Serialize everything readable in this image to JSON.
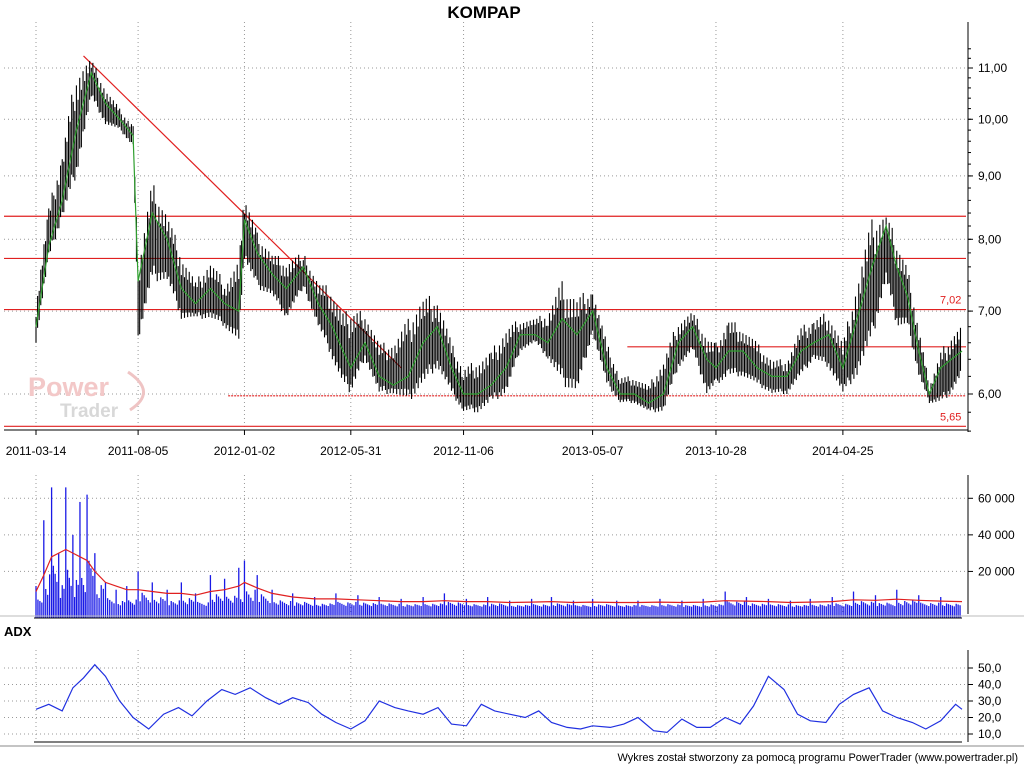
{
  "chart_data": [
    {
      "type": "line",
      "title": "KOMPAP",
      "y_scale": "log",
      "ylim": [
        5.5,
        11.6
      ],
      "yticks": [
        6,
        7,
        8,
        9,
        10,
        11
      ],
      "ytick_labels": [
        "6,00",
        "7,00",
        "8,00",
        "9,00",
        "10,00",
        "11,00"
      ],
      "x_tick_labels": [
        "2011-03-14",
        "2011-08-05",
        "2012-01-02",
        "2012-05-31",
        "2012-11-06",
        "2013-05-07",
        "2013-10-28",
        "2014-04-25"
      ],
      "grid": true,
      "series": [
        {
          "type": "hilo",
          "color": "#000000",
          "x": [
            "2011-03-14",
            "2011-04-01",
            "2011-04-20",
            "2011-05-10",
            "2011-05-31",
            "2011-06-20",
            "2011-07-10",
            "2011-07-29",
            "2011-08-05",
            "2011-08-25",
            "2011-09-15",
            "2011-10-05",
            "2011-10-25",
            "2011-11-15",
            "2011-12-05",
            "2011-12-25",
            "2012-01-02",
            "2012-01-20",
            "2012-02-10",
            "2012-03-01",
            "2012-03-25",
            "2012-04-15",
            "2012-05-05",
            "2012-05-20",
            "2012-05-31",
            "2012-06-20",
            "2012-07-10",
            "2012-07-30",
            "2012-08-20",
            "2012-09-10",
            "2012-09-30",
            "2012-10-20",
            "2012-11-06",
            "2012-11-26",
            "2012-12-15",
            "2013-01-05",
            "2013-01-25",
            "2013-02-15",
            "2013-03-05",
            "2013-03-25",
            "2013-04-15",
            "2013-05-07",
            "2013-05-27",
            "2013-06-15",
            "2013-07-05",
            "2013-07-25",
            "2013-08-15",
            "2013-09-05",
            "2013-09-25",
            "2013-10-15",
            "2013-10-28",
            "2013-11-15",
            "2013-12-05",
            "2013-12-25",
            "2014-01-15",
            "2014-02-05",
            "2014-02-25",
            "2014-03-15",
            "2014-04-05",
            "2014-04-25",
            "2014-05-15",
            "2014-06-05",
            "2014-06-25",
            "2014-07-10",
            "2014-07-25",
            "2014-08-10",
            "2014-08-25",
            "2014-09-10",
            "2014-09-25",
            "2014-10-10"
          ],
          "low": [
            6.6,
            7.7,
            8.3,
            9.0,
            10.4,
            9.9,
            9.8,
            9.5,
            6.6,
            7.4,
            7.4,
            6.9,
            6.9,
            6.9,
            6.8,
            6.6,
            7.7,
            7.3,
            7.2,
            6.9,
            7.3,
            6.8,
            6.4,
            6.1,
            6.0,
            6.4,
            6.0,
            6.0,
            5.9,
            6.1,
            6.3,
            6.0,
            5.8,
            5.8,
            5.9,
            6.0,
            6.5,
            6.6,
            6.4,
            6.1,
            6.0,
            6.7,
            6.1,
            5.9,
            5.9,
            5.8,
            5.8,
            6.3,
            6.5,
            6.0,
            6.1,
            6.2,
            6.2,
            6.1,
            6.0,
            6.0,
            6.2,
            6.4,
            6.3,
            6.0,
            6.2,
            6.6,
            7.4,
            6.8,
            6.8,
            6.2,
            5.9,
            5.9,
            6.0,
            6.2
          ],
          "high": [
            7.1,
            8.5,
            9.4,
            11.0,
            11.2,
            10.6,
            10.2,
            9.9,
            7.6,
            8.9,
            8.4,
            7.8,
            7.4,
            7.7,
            7.4,
            7.7,
            8.7,
            8.1,
            7.8,
            7.7,
            7.8,
            7.4,
            7.3,
            7.0,
            7.0,
            7.0,
            6.6,
            6.6,
            6.9,
            7.2,
            7.2,
            6.6,
            6.3,
            6.4,
            6.5,
            6.8,
            6.9,
            6.9,
            7.0,
            7.4,
            7.2,
            7.3,
            6.6,
            6.2,
            6.2,
            6.1,
            6.4,
            6.9,
            7.0,
            6.7,
            6.6,
            6.9,
            6.8,
            6.6,
            6.4,
            6.4,
            6.8,
            6.9,
            7.0,
            6.6,
            7.4,
            8.3,
            8.4,
            8.0,
            7.6,
            6.8,
            6.1,
            6.5,
            6.7,
            6.8
          ]
        },
        {
          "type": "line",
          "color": "#2e9e2e",
          "x": [
            "2011-03-14",
            "2011-04-01",
            "2011-04-20",
            "2011-05-10",
            "2011-05-31",
            "2011-06-20",
            "2011-07-10",
            "2011-07-29",
            "2011-08-05",
            "2011-08-25",
            "2011-09-15",
            "2011-10-05",
            "2011-10-25",
            "2011-11-15",
            "2011-12-05",
            "2011-12-25",
            "2012-01-02",
            "2012-01-20",
            "2012-02-10",
            "2012-03-01",
            "2012-03-25",
            "2012-04-15",
            "2012-05-05",
            "2012-05-20",
            "2012-05-31",
            "2012-06-20",
            "2012-07-10",
            "2012-07-30",
            "2012-08-20",
            "2012-09-10",
            "2012-09-30",
            "2012-10-20",
            "2012-11-06",
            "2012-11-26",
            "2012-12-15",
            "2013-01-05",
            "2013-01-25",
            "2013-02-15",
            "2013-03-05",
            "2013-03-25",
            "2013-04-15",
            "2013-05-07",
            "2013-05-27",
            "2013-06-15",
            "2013-07-05",
            "2013-07-25",
            "2013-08-15",
            "2013-09-05",
            "2013-09-25",
            "2013-10-15",
            "2013-10-28",
            "2013-11-15",
            "2013-12-05",
            "2013-12-25",
            "2014-01-15",
            "2014-02-05",
            "2014-02-25",
            "2014-03-15",
            "2014-04-05",
            "2014-04-25",
            "2014-05-15",
            "2014-06-05",
            "2014-06-25",
            "2014-07-10",
            "2014-07-25",
            "2014-08-10",
            "2014-08-25",
            "2014-09-10",
            "2014-09-25",
            "2014-10-10"
          ],
          "y": [
            6.8,
            7.9,
            8.6,
            9.8,
            10.9,
            10.3,
            10.0,
            9.7,
            7.4,
            8.4,
            8.0,
            7.3,
            7.1,
            7.3,
            7.1,
            7.0,
            8.3,
            7.8,
            7.5,
            7.3,
            7.6,
            7.1,
            6.8,
            6.5,
            6.3,
            6.6,
            6.2,
            6.1,
            6.2,
            6.6,
            6.8,
            6.3,
            6.0,
            6.0,
            6.1,
            6.3,
            6.7,
            6.7,
            6.6,
            6.9,
            6.7,
            7.0,
            6.3,
            6.0,
            6.0,
            5.9,
            6.0,
            6.6,
            6.8,
            6.4,
            6.3,
            6.5,
            6.5,
            6.3,
            6.2,
            6.2,
            6.5,
            6.6,
            6.7,
            6.3,
            6.9,
            7.6,
            8.2,
            7.6,
            7.2,
            6.5,
            6.0,
            6.3,
            6.4,
            6.5
          ]
        }
      ],
      "lines": [
        {
          "kind": "trend",
          "color": "#e02020",
          "from": {
            "x": "2011-05-20",
            "y": 11.25
          },
          "to": {
            "x": "2012-08-10",
            "y": 6.3
          }
        },
        {
          "kind": "horizontal",
          "color": "#e02020",
          "y": 8.35
        },
        {
          "kind": "horizontal",
          "color": "#e02020",
          "y": 7.72
        },
        {
          "kind": "horizontal",
          "color": "#e02020",
          "y": 7.02,
          "label": "7,02"
        },
        {
          "kind": "horizontal",
          "color": "#e02020",
          "y": 6.55,
          "x_start": "2013-06-25"
        },
        {
          "kind": "horizontal",
          "color": "#e02020",
          "y": 5.98,
          "x_start": "2011-12-10",
          "dotted": true
        },
        {
          "kind": "horizontal",
          "color": "#e02020",
          "y": 5.65,
          "label": "5,65"
        }
      ],
      "watermark": {
        "line1": "Power",
        "line2": "Trader"
      }
    },
    {
      "type": "bar",
      "ylim": [
        0,
        70000
      ],
      "yticks": [
        20000,
        40000,
        60000
      ],
      "ytick_labels": [
        "20 000",
        "40 000",
        "60 000"
      ],
      "grid": true,
      "x": [
        "2011-03-14",
        "2011-03-25",
        "2011-04-05",
        "2011-04-15",
        "2011-04-25",
        "2011-05-05",
        "2011-05-15",
        "2011-05-25",
        "2011-06-05",
        "2011-06-20",
        "2011-07-05",
        "2011-07-20",
        "2011-08-05",
        "2011-08-25",
        "2011-09-15",
        "2011-10-05",
        "2011-10-25",
        "2011-11-15",
        "2011-12-05",
        "2011-12-25",
        "2012-01-02",
        "2012-01-20",
        "2012-02-10",
        "2012-03-10",
        "2012-04-10",
        "2012-05-10",
        "2012-06-10",
        "2012-07-10",
        "2012-08-10",
        "2012-09-10",
        "2012-10-10",
        "2012-11-10",
        "2012-12-10",
        "2013-01-10",
        "2013-02-10",
        "2013-03-10",
        "2013-04-10",
        "2013-05-07",
        "2013-06-10",
        "2013-07-10",
        "2013-08-10",
        "2013-09-10",
        "2013-10-10",
        "2013-11-10",
        "2013-12-10",
        "2014-01-10",
        "2014-02-10",
        "2014-03-10",
        "2014-04-10",
        "2014-05-10",
        "2014-06-10",
        "2014-07-10",
        "2014-08-10",
        "2014-09-10",
        "2014-10-10"
      ],
      "values": [
        12000,
        48000,
        66000,
        30000,
        66000,
        40000,
        58000,
        62000,
        30000,
        14000,
        10000,
        12000,
        20000,
        14000,
        10000,
        14000,
        8000,
        18000,
        16000,
        22000,
        26000,
        18000,
        10000,
        8000,
        6000,
        8000,
        7000,
        6000,
        5000,
        6000,
        8000,
        5000,
        6000,
        4000,
        5000,
        6000,
        4000,
        5000,
        4000,
        4000,
        5000,
        4000,
        5000,
        9000,
        6000,
        5000,
        4000,
        5000,
        6000,
        9000,
        7000,
        10000,
        7000,
        6000,
        5000
      ],
      "ma_color": "#e02020",
      "ma": [
        9000,
        18000,
        28000,
        30000,
        32000,
        30000,
        28000,
        26000,
        20000,
        14000,
        12000,
        10000,
        10000,
        9000,
        8000,
        8000,
        7000,
        9000,
        10000,
        12000,
        14000,
        11000,
        8000,
        6000,
        5000,
        5000,
        4500,
        4000,
        3500,
        3500,
        4000,
        3500,
        3500,
        3000,
        3200,
        3500,
        3000,
        3200,
        3000,
        3000,
        3200,
        3000,
        3200,
        4000,
        3800,
        3500,
        3000,
        3200,
        3500,
        4500,
        4200,
        4800,
        4200,
        3800,
        3500
      ]
    },
    {
      "type": "line",
      "title": "ADX",
      "ylim": [
        8,
        55
      ],
      "yticks": [
        10,
        20,
        30,
        40,
        50
      ],
      "ytick_labels": [
        "10,0",
        "20,0",
        "30,0",
        "40,0",
        "50,0"
      ],
      "grid": true,
      "series": [
        {
          "color": "#2030e0",
          "x": [
            "2011-03-14",
            "2011-04-01",
            "2011-04-20",
            "2011-05-05",
            "2011-05-20",
            "2011-06-05",
            "2011-06-20",
            "2011-07-10",
            "2011-07-29",
            "2011-08-20",
            "2011-09-10",
            "2011-10-01",
            "2011-10-20",
            "2011-11-10",
            "2011-12-01",
            "2011-12-20",
            "2012-01-10",
            "2012-02-01",
            "2012-02-20",
            "2012-03-10",
            "2012-04-01",
            "2012-04-20",
            "2012-05-10",
            "2012-05-31",
            "2012-06-20",
            "2012-07-10",
            "2012-08-01",
            "2012-08-20",
            "2012-09-10",
            "2012-10-01",
            "2012-10-20",
            "2012-11-10",
            "2012-12-01",
            "2012-12-20",
            "2013-01-10",
            "2013-02-01",
            "2013-02-20",
            "2013-03-10",
            "2013-04-01",
            "2013-04-20",
            "2013-05-07",
            "2013-06-01",
            "2013-06-20",
            "2013-07-10",
            "2013-08-01",
            "2013-08-20",
            "2013-09-10",
            "2013-10-01",
            "2013-10-20",
            "2013-11-10",
            "2013-12-01",
            "2013-12-20",
            "2014-01-10",
            "2014-02-01",
            "2014-02-20",
            "2014-03-10",
            "2014-04-01",
            "2014-04-20",
            "2014-05-10",
            "2014-06-01",
            "2014-06-20",
            "2014-07-10",
            "2014-08-01",
            "2014-08-20",
            "2014-09-10",
            "2014-10-01",
            "2014-10-10"
          ],
          "y": [
            25,
            28,
            24,
            38,
            44,
            52,
            45,
            30,
            20,
            13,
            22,
            26,
            21,
            30,
            37,
            34,
            38,
            32,
            28,
            32,
            29,
            22,
            17,
            13,
            18,
            30,
            26,
            24,
            22,
            26,
            16,
            15,
            28,
            24,
            22,
            20,
            24,
            17,
            14,
            13,
            15,
            14,
            16,
            20,
            12,
            11,
            19,
            14,
            14,
            20,
            16,
            27,
            45,
            37,
            22,
            18,
            17,
            28,
            34,
            38,
            24,
            20,
            17,
            13,
            18,
            28,
            25
          ]
        }
      ]
    }
  ],
  "footer": {
    "credit": "Wykres został stworzony za pomocą programu PowerTrader (www.powertrader.pl)"
  }
}
